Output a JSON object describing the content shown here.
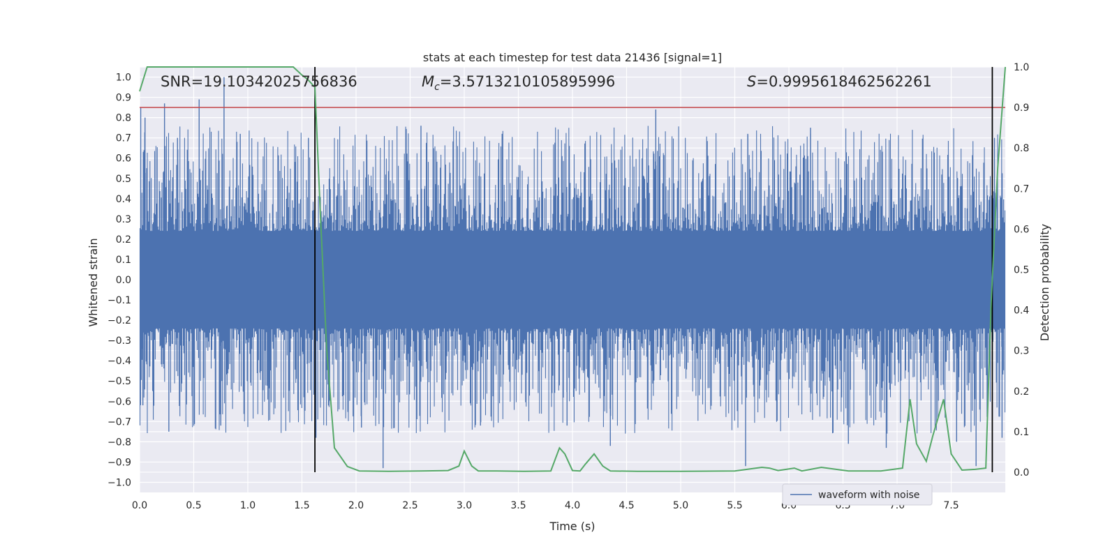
{
  "chart_data": {
    "type": "line",
    "title": "stats at each timestep for test data 21436 [signal=1]",
    "xlabel": "Time (s)",
    "ylabel_left": "Whitened strain",
    "ylabel_right": "Detection probability",
    "xlim": [
      0.0,
      8.0
    ],
    "ylim_left": [
      -1.05,
      1.05
    ],
    "ylim_right": [
      -0.05,
      1.0
    ],
    "xticks": [
      "0.0",
      "0.5",
      "1.0",
      "1.5",
      "2.0",
      "2.5",
      "3.0",
      "3.5",
      "4.0",
      "4.5",
      "5.0",
      "5.5",
      "6.0",
      "6.5",
      "7.0",
      "7.5"
    ],
    "yticks_left": [
      "1.0",
      "0.9",
      "0.8",
      "0.7",
      "0.6",
      "0.5",
      "0.4",
      "0.3",
      "0.2",
      "0.1",
      "0.0",
      "−0.1",
      "−0.2",
      "−0.3",
      "−0.4",
      "−0.5",
      "−0.6",
      "−0.7",
      "−0.8",
      "−0.9",
      "−1.0"
    ],
    "yticks_right": [
      "1.0",
      "0.9",
      "0.8",
      "0.7",
      "0.6",
      "0.5",
      "0.4",
      "0.3",
      "0.2",
      "0.1",
      "0.0"
    ],
    "grid": true,
    "legend": {
      "entries": [
        "waveform with noise"
      ],
      "location": "lower-right"
    },
    "annotations": {
      "snr_text": "SNR=19.10342025756836",
      "mc_symbol": "M",
      "mc_subscript": "c",
      "mc_value": "=3.5713210105895996",
      "s_symbol": "S",
      "s_value": "=0.9995618462562261"
    },
    "threshold_probability": 0.9,
    "vertical_markers_time": [
      1.62,
      7.88
    ],
    "waveform": {
      "name": "waveform with noise",
      "color": "#4c72b0",
      "band_min": -0.24,
      "band_max": 0.24,
      "spikes": [
        {
          "t": 0.01,
          "v": 0.85
        },
        {
          "t": 0.05,
          "v": 0.8
        },
        {
          "t": 0.23,
          "v": 0.87
        },
        {
          "t": 0.35,
          "v": 0.7
        },
        {
          "t": 0.55,
          "v": 0.89
        },
        {
          "t": 0.78,
          "v": 1.0
        },
        {
          "t": 0.93,
          "v": 0.72
        },
        {
          "t": 1.56,
          "v": 0.7
        },
        {
          "t": 2.6,
          "v": 0.76
        },
        {
          "t": 3.35,
          "v": 0.72
        },
        {
          "t": 4.77,
          "v": 0.84
        },
        {
          "t": 5.62,
          "v": 0.72
        },
        {
          "t": 6.2,
          "v": 0.75
        },
        {
          "t": 7.9,
          "v": 0.7
        },
        {
          "t": 0.03,
          "v": -0.62
        },
        {
          "t": 0.27,
          "v": -0.75
        },
        {
          "t": 0.75,
          "v": -0.72
        },
        {
          "t": 1.63,
          "v": -0.78
        },
        {
          "t": 2.05,
          "v": -0.73
        },
        {
          "t": 2.25,
          "v": -0.93
        },
        {
          "t": 3.15,
          "v": -0.72
        },
        {
          "t": 3.95,
          "v": -0.72
        },
        {
          "t": 4.35,
          "v": -0.82
        },
        {
          "t": 5.6,
          "v": -0.92
        },
        {
          "t": 6.55,
          "v": -0.81
        },
        {
          "t": 6.9,
          "v": -0.83
        },
        {
          "t": 7.55,
          "v": -0.8
        },
        {
          "t": 7.73,
          "v": -0.92
        },
        {
          "t": 7.97,
          "v": -0.78
        }
      ]
    },
    "probability": {
      "color": "#55a868",
      "t": [
        0.0,
        0.07,
        0.25,
        0.5,
        0.75,
        1.0,
        1.25,
        1.42,
        1.5,
        1.55,
        1.62,
        1.67,
        1.73,
        1.8,
        1.92,
        2.03,
        2.3,
        2.6,
        2.85,
        2.95,
        3.0,
        3.07,
        3.13,
        3.3,
        3.55,
        3.8,
        3.88,
        3.93,
        4.0,
        4.07,
        4.12,
        4.2,
        4.28,
        4.35,
        4.6,
        5.0,
        5.5,
        5.75,
        5.82,
        5.9,
        6.05,
        6.12,
        6.3,
        6.55,
        6.85,
        7.05,
        7.12,
        7.18,
        7.27,
        7.33,
        7.43,
        7.5,
        7.6,
        7.72,
        7.82,
        7.87,
        7.93,
        8.0
      ],
      "p": [
        0.94,
        1.0,
        1.0,
        1.0,
        1.0,
        1.0,
        1.0,
        1.0,
        0.98,
        0.97,
        0.95,
        0.64,
        0.3,
        0.06,
        0.014,
        0.003,
        0.002,
        0.003,
        0.004,
        0.015,
        0.052,
        0.015,
        0.003,
        0.003,
        0.002,
        0.003,
        0.06,
        0.045,
        0.004,
        0.003,
        0.02,
        0.045,
        0.015,
        0.003,
        0.002,
        0.002,
        0.003,
        0.012,
        0.01,
        0.004,
        0.01,
        0.003,
        0.012,
        0.003,
        0.003,
        0.01,
        0.18,
        0.07,
        0.027,
        0.09,
        0.18,
        0.045,
        0.005,
        0.007,
        0.01,
        0.42,
        0.75,
        1.0
      ]
    }
  }
}
